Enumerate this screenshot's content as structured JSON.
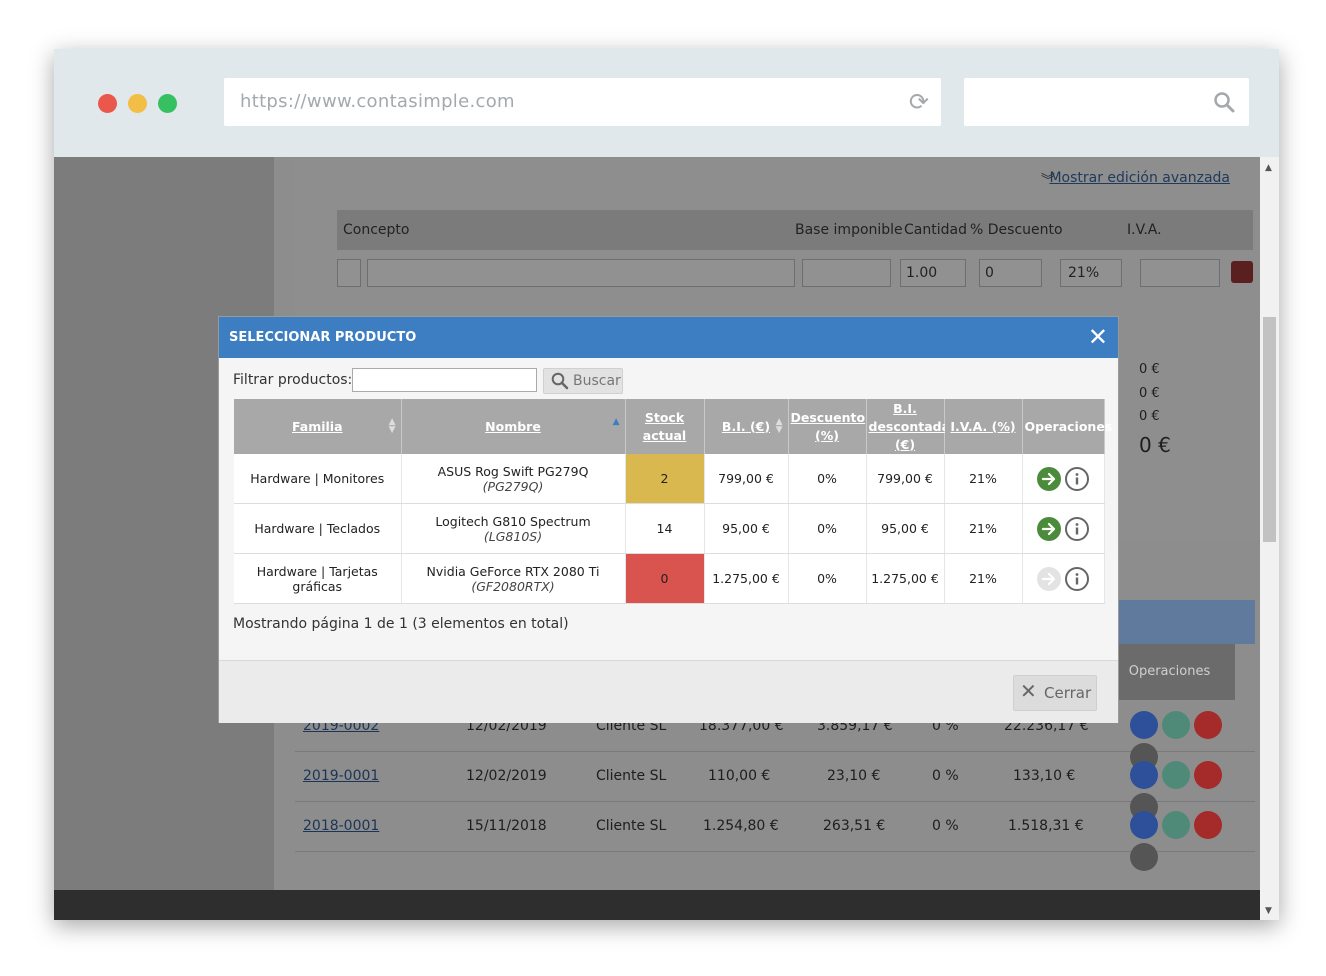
{
  "browser": {
    "url": "https://www.contasimple.com"
  },
  "form": {
    "advanced_link": "Mostrar edición avanzada",
    "headers": {
      "concepto": "Concepto",
      "base": "Base imponible",
      "cantidad": "Cantidad",
      "descuento": "% Descuento",
      "iva": "I.V.A."
    },
    "cantidad_value": "1.00",
    "descuento_value": "0",
    "iva_value": "21%"
  },
  "background_table": {
    "ops_header": "Operaciones",
    "partial_totals": [
      "0 €",
      "0 €",
      "0 €",
      "0 €"
    ],
    "rows": [
      {
        "num": "2019-0002",
        "date": "12/02/2019",
        "client": "Cliente SL",
        "base": "18.377,00 €",
        "iva": "3.859,17 €",
        "ret": "0 %",
        "total": "22.236,17 €"
      },
      {
        "num": "2019-0001",
        "date": "12/02/2019",
        "client": "Cliente SL",
        "base": "110,00 €",
        "iva": "23,10 €",
        "ret": "0 %",
        "total": "133,10 €"
      },
      {
        "num": "2018-0001",
        "date": "15/11/2018",
        "client": "Cliente SL",
        "base": "1.254,80 €",
        "iva": "263,51 €",
        "ret": "0 %",
        "total": "1.518,31 €"
      }
    ]
  },
  "modal": {
    "title": "SELECCIONAR PRODUCTO",
    "filter_label": "Filtrar productos:",
    "filter_value": "",
    "search_button": "Buscar",
    "columns": {
      "familia": "Familia",
      "nombre": "Nombre",
      "stock": "Stock actual",
      "bi": "B.I. (€)",
      "descuento": "Descuento (%)",
      "bi_desc": "B.I. descontada (€)",
      "iva": "I.V.A. (%)",
      "ops": "Operaciones"
    },
    "rows": [
      {
        "familia": "Hardware | Monitores",
        "nombre": "ASUS Rog Swift PG279Q",
        "codigo": "(PG279Q)",
        "stock": "2",
        "bi": "799,00 €",
        "descuento": "0%",
        "bi_desc": "799,00 €",
        "iva": "21%"
      },
      {
        "familia": "Hardware | Teclados",
        "nombre": "Logitech G810 Spectrum",
        "codigo": "(LG810S)",
        "stock": "14",
        "bi": "95,00 €",
        "descuento": "0%",
        "bi_desc": "95,00 €",
        "iva": "21%"
      },
      {
        "familia": "Hardware | Tarjetas gráficas",
        "nombre": "Nvidia GeForce RTX 2080 Ti",
        "codigo": "(GF2080RTX)",
        "stock": "0",
        "bi": "1.275,00 €",
        "descuento": "0%",
        "bi_desc": "1.275,00 €",
        "iva": "21%"
      }
    ],
    "paging": "Mostrando página 1 de 1 (3 elementos en total)",
    "close_button": "Cerrar"
  },
  "colors": {
    "modal_header": "#3d7ec2",
    "stock_low": "#dab850",
    "stock_out": "#d9534f",
    "go_button": "#4c8b3b"
  }
}
